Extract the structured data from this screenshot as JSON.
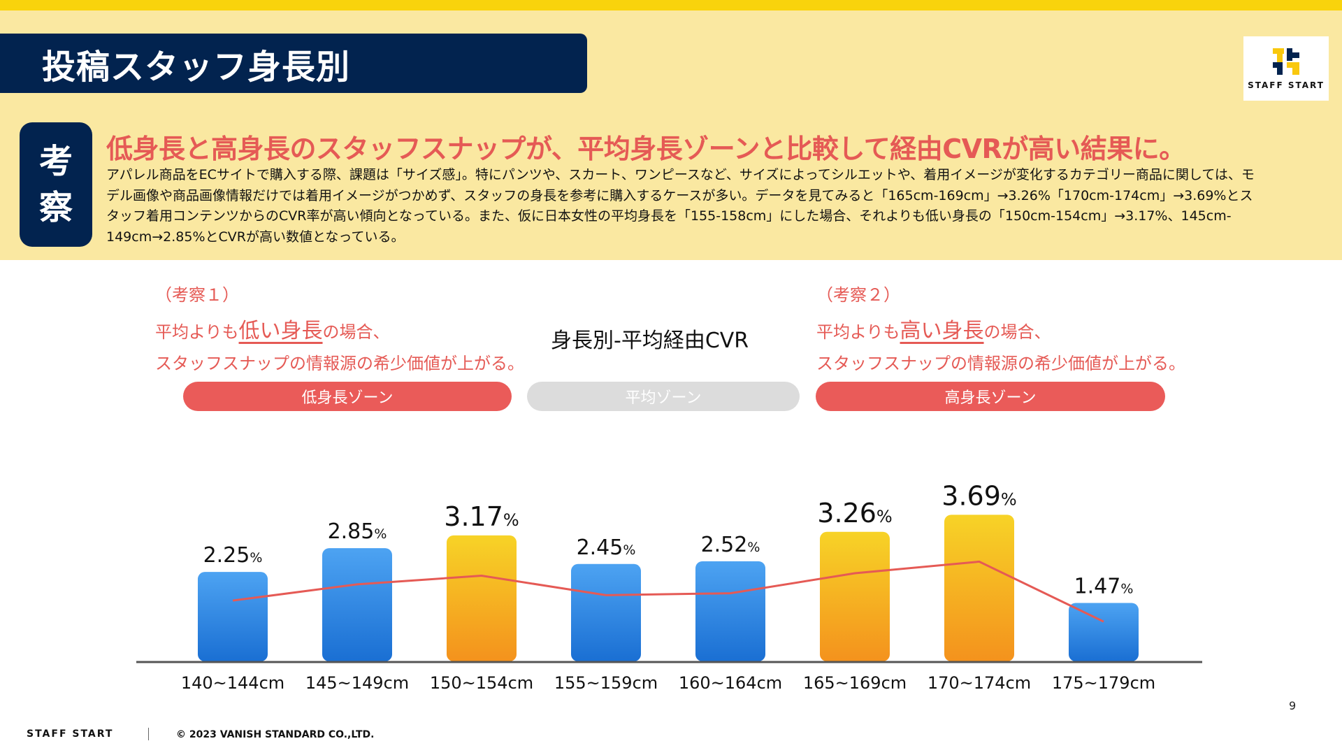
{
  "header": {
    "title": "投稿スタッフ身長別",
    "logo_text": "STAFF START"
  },
  "insight": {
    "badge_chars": [
      "考",
      "察"
    ],
    "headline": "低身長と高身長のスタッフスナップが、平均身長ゾーンと比較して経由CVRが高い結果に。",
    "body": "アパレル商品をECサイトで購入する際、課題は「サイズ感」。特にパンツや、スカート、ワンピースなど、サイズによってシルエットや、着用イメージが変化するカテゴリー商品に関しては、モデル画像や商品画像情報だけでは着用イメージがつかめず、スタッフの身長を参考に購入するケースが多い。データを見てみると「165cm-169cm」→3.26%「170cm-174cm」→3.69%とスタッフ着用コンテンツからのCVR率が高い傾向となっている。また、仮に日本女性の平均身長を「155-158cm」にした場合、それよりも低い身長の「150cm-154cm」→3.17%、145cm-149cm→2.85%とCVRが高い数値となっている。"
  },
  "notes": {
    "left": {
      "label": "（考察１）",
      "pre": "平均よりも",
      "emph": "低い身長",
      "post": "の場合、",
      "line2": "スタッフスナップの情報源の希少価値が上がる。"
    },
    "right": {
      "label": "（考察２）",
      "pre": "平均よりも",
      "emph": "高い身長",
      "post": "の場合、",
      "line2": "スタッフスナップの情報源の希少価値が上がる。"
    }
  },
  "zones": {
    "low": "低身長ゾーン",
    "avg": "平均ゾーン",
    "high": "高身長ゾーン"
  },
  "chart_data": {
    "type": "bar",
    "title": "身長別-平均経由CVR",
    "categories": [
      "140~144cm",
      "145~149cm",
      "150~154cm",
      "155~159cm",
      "160~164cm",
      "165~169cm",
      "170~174cm",
      "175~179cm"
    ],
    "values": [
      2.25,
      2.85,
      3.17,
      2.45,
      2.52,
      3.26,
      3.69,
      1.47
    ],
    "value_suffix": "%",
    "highlight": [
      false,
      false,
      true,
      false,
      false,
      true,
      true,
      false
    ],
    "line_overlay": true,
    "xlabel": "",
    "ylabel": "",
    "ylim": [
      0,
      4.4
    ],
    "colors": {
      "bar_top": "#4da3f2",
      "bar_bottom": "#1a6fd3",
      "highlight_top": "#f7d327",
      "highlight_bottom": "#f4921d",
      "line": "#e55a55",
      "axis": "#555555"
    }
  },
  "footer": {
    "page_number": "9",
    "brand": "STAFF START",
    "copyright": "© 2023 VANISH STANDARD CO.,LTD."
  }
}
